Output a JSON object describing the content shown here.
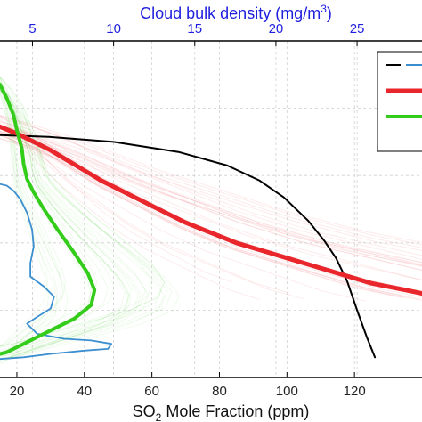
{
  "chart_data": {
    "type": "line",
    "title": "",
    "xlabel": "SO2 Mole Fraction (ppm)",
    "xlabel_parts": {
      "main": "SO",
      "sub": "2",
      "rest": " Mole Fraction (ppm)"
    },
    "x2label": "Cloud bulk density (mg/m3)",
    "x2label_parts": {
      "main": "Cloud bulk density (mg/m",
      "sup": "3",
      "rest": ")"
    },
    "xlim": [
      15,
      140
    ],
    "x2lim": [
      3,
      29
    ],
    "xticks": [
      20,
      40,
      60,
      80,
      100,
      120
    ],
    "x2ticks": [
      5,
      10,
      15,
      20,
      25
    ],
    "ylim": [
      0,
      1
    ],
    "grid": true,
    "legend_position": "top-right",
    "colors": {
      "black": "#000000",
      "blue": "#3b8fd0",
      "red": "#e8262b",
      "green": "#33cc1a",
      "top_axis": "#1f1fe0",
      "grid": "#cfcfcf"
    },
    "series": [
      {
        "color": "#000000",
        "axis": "top",
        "points": [
          [
            3.0,
            0.72
          ],
          [
            6.0,
            0.715
          ],
          [
            10.0,
            0.7
          ],
          [
            14.0,
            0.67
          ],
          [
            17.0,
            0.63
          ],
          [
            19.0,
            0.585
          ],
          [
            20.5,
            0.535
          ],
          [
            22.0,
            0.465
          ],
          [
            23.0,
            0.405
          ],
          [
            23.7,
            0.355
          ],
          [
            24.4,
            0.285
          ],
          [
            25.0,
            0.2
          ],
          [
            25.6,
            0.12
          ],
          [
            26.1,
            0.06
          ]
        ]
      },
      {
        "color": "#3b8fd0",
        "axis": "bottom",
        "points": [
          [
            15,
            0.575
          ],
          [
            17,
            0.57
          ],
          [
            19,
            0.555
          ],
          [
            21,
            0.53
          ],
          [
            23,
            0.49
          ],
          [
            24.5,
            0.44
          ],
          [
            25,
            0.39
          ],
          [
            24,
            0.34
          ],
          [
            24,
            0.3
          ],
          [
            28,
            0.27
          ],
          [
            31,
            0.24
          ],
          [
            30,
            0.205
          ],
          [
            26,
            0.18
          ],
          [
            23,
            0.16
          ],
          [
            26,
            0.13
          ],
          [
            34,
            0.115
          ],
          [
            42,
            0.11
          ],
          [
            48,
            0.1
          ],
          [
            47,
            0.085
          ],
          [
            40,
            0.08
          ],
          [
            30,
            0.07
          ],
          [
            22,
            0.06
          ],
          [
            15,
            0.055
          ]
        ]
      },
      {
        "color": "#e8262b",
        "axis": "bottom",
        "points": [
          [
            15,
            0.745
          ],
          [
            20,
            0.725
          ],
          [
            25,
            0.7
          ],
          [
            30,
            0.675
          ],
          [
            35,
            0.645
          ],
          [
            40,
            0.615
          ],
          [
            45,
            0.585
          ],
          [
            50,
            0.56
          ],
          [
            55,
            0.535
          ],
          [
            60,
            0.51
          ],
          [
            65,
            0.485
          ],
          [
            70,
            0.46
          ],
          [
            75,
            0.44
          ],
          [
            80,
            0.42
          ],
          [
            85,
            0.4
          ],
          [
            90,
            0.385
          ],
          [
            95,
            0.37
          ],
          [
            100,
            0.355
          ],
          [
            105,
            0.34
          ],
          [
            110,
            0.325
          ],
          [
            115,
            0.31
          ],
          [
            120,
            0.295
          ],
          [
            125,
            0.28
          ],
          [
            130,
            0.27
          ],
          [
            135,
            0.26
          ],
          [
            140,
            0.25
          ]
        ]
      },
      {
        "color": "#33cc1a",
        "axis": "bottom",
        "points": [
          [
            15,
            0.87
          ],
          [
            17,
            0.83
          ],
          [
            19,
            0.78
          ],
          [
            20,
            0.735
          ],
          [
            21.5,
            0.68
          ],
          [
            22,
            0.635
          ],
          [
            23,
            0.59
          ],
          [
            25,
            0.55
          ],
          [
            28,
            0.5
          ],
          [
            32,
            0.44
          ],
          [
            37,
            0.37
          ],
          [
            41,
            0.31
          ],
          [
            43,
            0.26
          ],
          [
            42,
            0.215
          ],
          [
            37,
            0.175
          ],
          [
            30,
            0.14
          ],
          [
            24,
            0.11
          ],
          [
            20,
            0.09
          ],
          [
            17,
            0.075
          ],
          [
            15,
            0.07
          ]
        ]
      }
    ]
  }
}
